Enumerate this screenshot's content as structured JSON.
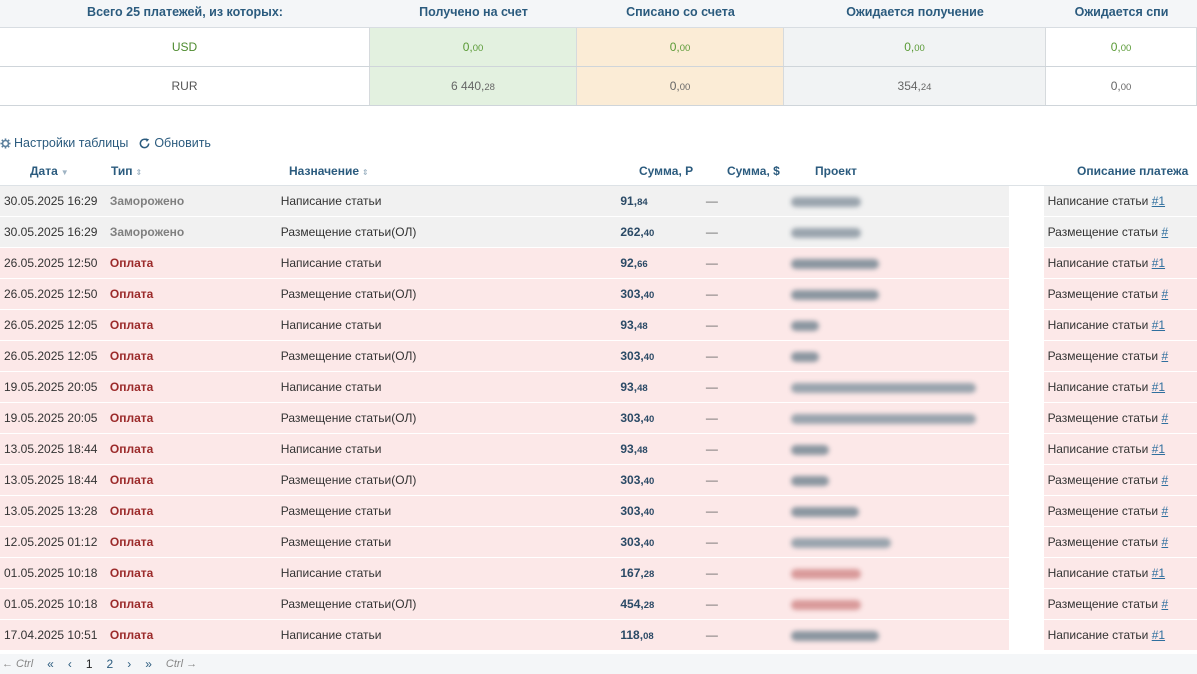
{
  "summary": {
    "title": "Всего 25 платежей, из которых:",
    "col_in": "Получено на счет",
    "col_out": "Списано со счета",
    "col_wait": "Ожидается получение",
    "col_wait2": "Ожидается спи",
    "rows": [
      {
        "currency": "USD",
        "in_main": "0,",
        "in_cents": "00",
        "out_main": "0,",
        "out_cents": "00",
        "wait_main": "0,",
        "wait_cents": "00",
        "wait2_main": "0,",
        "wait2_cents": "00"
      },
      {
        "currency": "RUR",
        "in_main": "6 440,",
        "in_cents": "28",
        "out_main": "0,",
        "out_cents": "00",
        "wait_main": "354,",
        "wait_cents": "24",
        "wait2_main": "0,",
        "wait2_cents": "00"
      }
    ]
  },
  "toolbar": {
    "settings_label": "Настройки таблицы",
    "refresh_label": "Обновить"
  },
  "table": {
    "headers": {
      "date": "Дата",
      "type": "Тип",
      "purpose": "Назначение",
      "rub": "Сумма, Р",
      "usd": "Сумма, $",
      "project": "Проект",
      "description": "Описание платежа"
    },
    "rows": [
      {
        "date": "30.05.2025 16:29",
        "type": "Заморожено",
        "kind": "frozen",
        "purpose": "Написание статьи",
        "rub_main": "91,",
        "rub_cents": "84",
        "usd": "—",
        "desc": "Написание статьи ",
        "desc_link": "#1"
      },
      {
        "date": "30.05.2025 16:29",
        "type": "Заморожено",
        "kind": "frozen",
        "purpose": "Размещение статьи(ОЛ)",
        "rub_main": "262,",
        "rub_cents": "40",
        "usd": "—",
        "desc": "Размещение статьи ",
        "desc_link": "#"
      },
      {
        "date": "26.05.2025 12:50",
        "type": "Оплата",
        "kind": "pay",
        "purpose": "Написание статьи",
        "rub_main": "92,",
        "rub_cents": "66",
        "usd": "—",
        "desc": "Написание статьи ",
        "desc_link": "#1"
      },
      {
        "date": "26.05.2025 12:50",
        "type": "Оплата",
        "kind": "pay",
        "purpose": "Размещение статьи(ОЛ)",
        "rub_main": "303,",
        "rub_cents": "40",
        "usd": "—",
        "desc": "Размещение статьи ",
        "desc_link": "#"
      },
      {
        "date": "26.05.2025 12:05",
        "type": "Оплата",
        "kind": "pay",
        "purpose": "Написание статьи",
        "rub_main": "93,",
        "rub_cents": "48",
        "usd": "—",
        "desc": "Написание статьи ",
        "desc_link": "#1"
      },
      {
        "date": "26.05.2025 12:05",
        "type": "Оплата",
        "kind": "pay",
        "purpose": "Размещение статьи(ОЛ)",
        "rub_main": "303,",
        "rub_cents": "40",
        "usd": "—",
        "desc": "Размещение статьи ",
        "desc_link": "#"
      },
      {
        "date": "19.05.2025 20:05",
        "type": "Оплата",
        "kind": "pay",
        "purpose": "Написание статьи",
        "rub_main": "93,",
        "rub_cents": "48",
        "usd": "—",
        "desc": "Написание статьи ",
        "desc_link": "#1"
      },
      {
        "date": "19.05.2025 20:05",
        "type": "Оплата",
        "kind": "pay",
        "purpose": "Размещение статьи(ОЛ)",
        "rub_main": "303,",
        "rub_cents": "40",
        "usd": "—",
        "desc": "Размещение статьи ",
        "desc_link": "#"
      },
      {
        "date": "13.05.2025 18:44",
        "type": "Оплата",
        "kind": "pay",
        "purpose": "Написание статьи",
        "rub_main": "93,",
        "rub_cents": "48",
        "usd": "—",
        "desc": "Написание статьи ",
        "desc_link": "#1"
      },
      {
        "date": "13.05.2025 18:44",
        "type": "Оплата",
        "kind": "pay",
        "purpose": "Размещение статьи(ОЛ)",
        "rub_main": "303,",
        "rub_cents": "40",
        "usd": "—",
        "desc": "Размещение статьи ",
        "desc_link": "#"
      },
      {
        "date": "13.05.2025 13:28",
        "type": "Оплата",
        "kind": "pay",
        "purpose": "Размещение статьи",
        "rub_main": "303,",
        "rub_cents": "40",
        "usd": "—",
        "desc": "Размещение статьи ",
        "desc_link": "#"
      },
      {
        "date": "12.05.2025 01:12",
        "type": "Оплата",
        "kind": "pay",
        "purpose": "Размещение статьи",
        "rub_main": "303,",
        "rub_cents": "40",
        "usd": "—",
        "desc": "Размещение статьи ",
        "desc_link": "#"
      },
      {
        "date": "01.05.2025 10:18",
        "type": "Оплата",
        "kind": "pay",
        "purpose": "Написание статьи",
        "rub_main": "167,",
        "rub_cents": "28",
        "usd": "—",
        "desc": "Написание статьи ",
        "desc_link": "#1"
      },
      {
        "date": "01.05.2025 10:18",
        "type": "Оплата",
        "kind": "pay",
        "purpose": "Размещение статьи(ОЛ)",
        "rub_main": "454,",
        "rub_cents": "28",
        "usd": "—",
        "desc": "Размещение статьи ",
        "desc_link": "#"
      },
      {
        "date": "17.04.2025 10:51",
        "type": "Оплата",
        "kind": "pay",
        "purpose": "Написание статьи",
        "rub_main": "118,",
        "rub_cents": "08",
        "usd": "—",
        "desc": "Написание статьи ",
        "desc_link": "#1"
      }
    ]
  },
  "pager": {
    "prev_hint": "← Ctrl",
    "first": "«",
    "prev": "‹",
    "page1": "1",
    "page2": "2",
    "next": "›",
    "last": "»",
    "next_hint": "Ctrl →"
  },
  "colors": {
    "header_text": "#2b5b7e",
    "pay_row_bg": "#fce8e8",
    "frozen_row_bg": "#f1f1f1",
    "pay_type_text": "#9b2a2a"
  }
}
